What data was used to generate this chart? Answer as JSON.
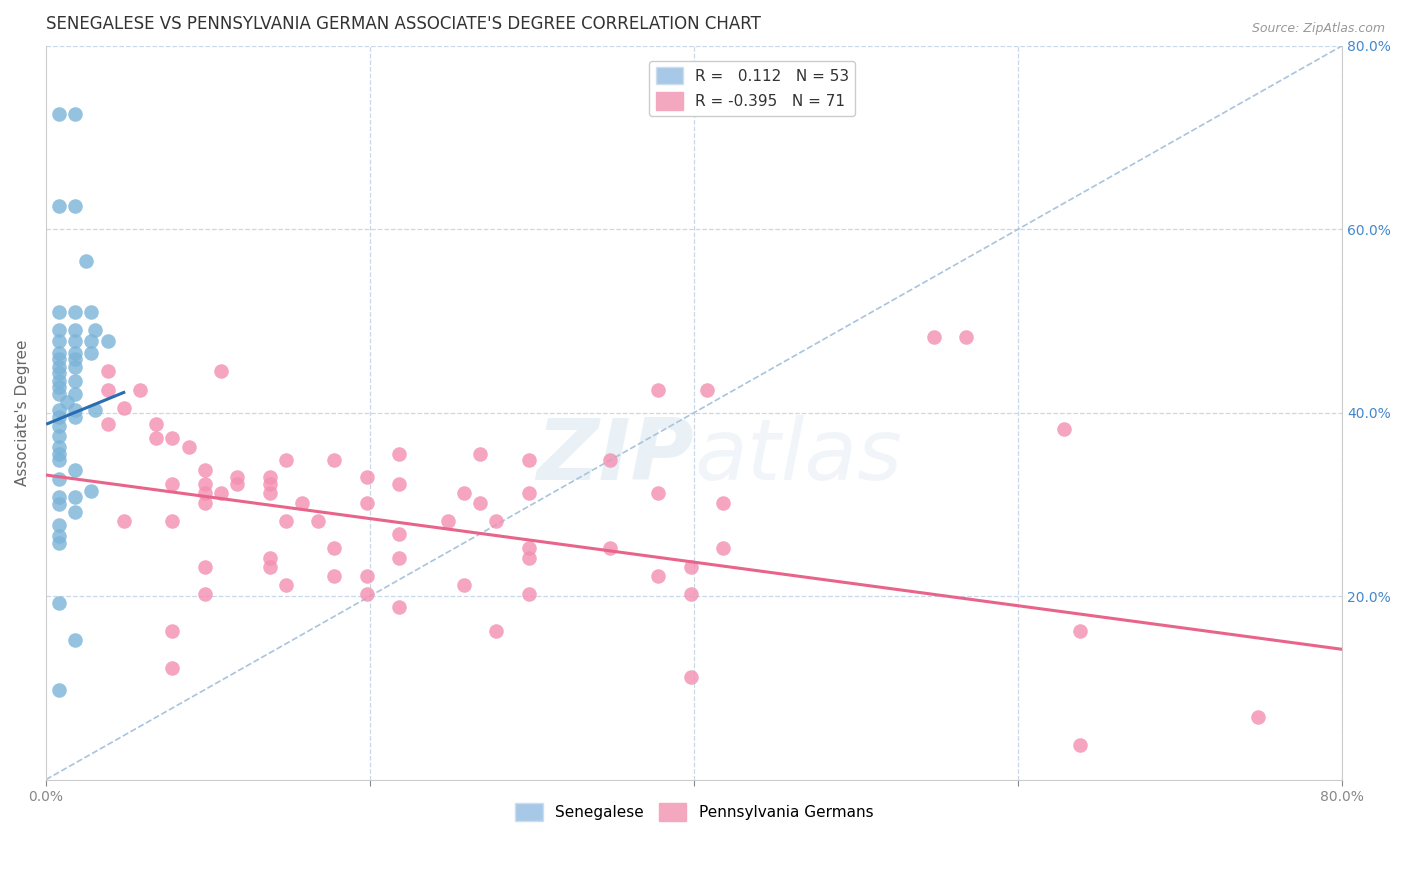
{
  "title": "SENEGALESE VS PENNSYLVANIA GERMAN ASSOCIATE'S DEGREE CORRELATION CHART",
  "source": "Source: ZipAtlas.com",
  "ylabel": "Associate's Degree",
  "xlim": [
    0,
    0.8
  ],
  "ylim": [
    0,
    0.8
  ],
  "blue_scatter_color": "#7ab3d8",
  "pink_scatter_color": "#f48fb1",
  "blue_line_color": "#2a6cb0",
  "pink_line_color": "#e8648a",
  "dashed_line_color": "#a8c4de",
  "watermark_zip": "ZIP",
  "watermark_atlas": "atlas",
  "background_color": "#ffffff",
  "grid_color": "#c8d8e8",
  "senegalese_points": [
    [
      0.008,
      0.725
    ],
    [
      0.018,
      0.725
    ],
    [
      0.008,
      0.625
    ],
    [
      0.018,
      0.625
    ],
    [
      0.025,
      0.565
    ],
    [
      0.008,
      0.51
    ],
    [
      0.018,
      0.51
    ],
    [
      0.028,
      0.51
    ],
    [
      0.008,
      0.49
    ],
    [
      0.018,
      0.49
    ],
    [
      0.03,
      0.49
    ],
    [
      0.008,
      0.478
    ],
    [
      0.018,
      0.478
    ],
    [
      0.028,
      0.478
    ],
    [
      0.038,
      0.478
    ],
    [
      0.008,
      0.465
    ],
    [
      0.018,
      0.465
    ],
    [
      0.028,
      0.465
    ],
    [
      0.008,
      0.458
    ],
    [
      0.018,
      0.458
    ],
    [
      0.008,
      0.45
    ],
    [
      0.018,
      0.45
    ],
    [
      0.008,
      0.443
    ],
    [
      0.008,
      0.435
    ],
    [
      0.018,
      0.435
    ],
    [
      0.008,
      0.428
    ],
    [
      0.008,
      0.42
    ],
    [
      0.018,
      0.42
    ],
    [
      0.013,
      0.412
    ],
    [
      0.008,
      0.403
    ],
    [
      0.018,
      0.403
    ],
    [
      0.03,
      0.403
    ],
    [
      0.008,
      0.395
    ],
    [
      0.018,
      0.395
    ],
    [
      0.008,
      0.385
    ],
    [
      0.008,
      0.375
    ],
    [
      0.008,
      0.362
    ],
    [
      0.008,
      0.355
    ],
    [
      0.008,
      0.348
    ],
    [
      0.018,
      0.338
    ],
    [
      0.008,
      0.328
    ],
    [
      0.028,
      0.315
    ],
    [
      0.008,
      0.308
    ],
    [
      0.018,
      0.308
    ],
    [
      0.008,
      0.3
    ],
    [
      0.018,
      0.292
    ],
    [
      0.008,
      0.278
    ],
    [
      0.008,
      0.265
    ],
    [
      0.008,
      0.258
    ],
    [
      0.008,
      0.192
    ],
    [
      0.018,
      0.152
    ],
    [
      0.008,
      0.098
    ]
  ],
  "penn_german_points": [
    [
      0.038,
      0.445
    ],
    [
      0.108,
      0.445
    ],
    [
      0.038,
      0.425
    ],
    [
      0.058,
      0.425
    ],
    [
      0.378,
      0.425
    ],
    [
      0.408,
      0.425
    ],
    [
      0.048,
      0.405
    ],
    [
      0.038,
      0.388
    ],
    [
      0.068,
      0.388
    ],
    [
      0.068,
      0.372
    ],
    [
      0.078,
      0.372
    ],
    [
      0.088,
      0.362
    ],
    [
      0.218,
      0.355
    ],
    [
      0.268,
      0.355
    ],
    [
      0.148,
      0.348
    ],
    [
      0.178,
      0.348
    ],
    [
      0.298,
      0.348
    ],
    [
      0.348,
      0.348
    ],
    [
      0.098,
      0.338
    ],
    [
      0.118,
      0.33
    ],
    [
      0.138,
      0.33
    ],
    [
      0.198,
      0.33
    ],
    [
      0.078,
      0.322
    ],
    [
      0.098,
      0.322
    ],
    [
      0.118,
      0.322
    ],
    [
      0.138,
      0.322
    ],
    [
      0.218,
      0.322
    ],
    [
      0.098,
      0.312
    ],
    [
      0.108,
      0.312
    ],
    [
      0.138,
      0.312
    ],
    [
      0.258,
      0.312
    ],
    [
      0.298,
      0.312
    ],
    [
      0.378,
      0.312
    ],
    [
      0.098,
      0.302
    ],
    [
      0.158,
      0.302
    ],
    [
      0.198,
      0.302
    ],
    [
      0.268,
      0.302
    ],
    [
      0.418,
      0.302
    ],
    [
      0.048,
      0.282
    ],
    [
      0.078,
      0.282
    ],
    [
      0.148,
      0.282
    ],
    [
      0.168,
      0.282
    ],
    [
      0.248,
      0.282
    ],
    [
      0.278,
      0.282
    ],
    [
      0.218,
      0.268
    ],
    [
      0.178,
      0.252
    ],
    [
      0.298,
      0.252
    ],
    [
      0.348,
      0.252
    ],
    [
      0.418,
      0.252
    ],
    [
      0.138,
      0.242
    ],
    [
      0.218,
      0.242
    ],
    [
      0.298,
      0.242
    ],
    [
      0.098,
      0.232
    ],
    [
      0.138,
      0.232
    ],
    [
      0.398,
      0.232
    ],
    [
      0.178,
      0.222
    ],
    [
      0.198,
      0.222
    ],
    [
      0.378,
      0.222
    ],
    [
      0.148,
      0.212
    ],
    [
      0.258,
      0.212
    ],
    [
      0.098,
      0.202
    ],
    [
      0.198,
      0.202
    ],
    [
      0.298,
      0.202
    ],
    [
      0.398,
      0.202
    ],
    [
      0.218,
      0.188
    ],
    [
      0.078,
      0.162
    ],
    [
      0.278,
      0.162
    ],
    [
      0.638,
      0.162
    ],
    [
      0.078,
      0.122
    ],
    [
      0.398,
      0.112
    ],
    [
      0.638,
      0.038
    ],
    [
      0.548,
      0.482
    ],
    [
      0.568,
      0.482
    ],
    [
      0.628,
      0.382
    ],
    [
      0.748,
      0.068
    ]
  ],
  "blue_line_x": [
    0.001,
    0.048
  ],
  "blue_line_y": [
    0.388,
    0.422
  ],
  "pink_line_x": [
    0.0,
    0.8
  ],
  "pink_line_y": [
    0.332,
    0.142
  ]
}
